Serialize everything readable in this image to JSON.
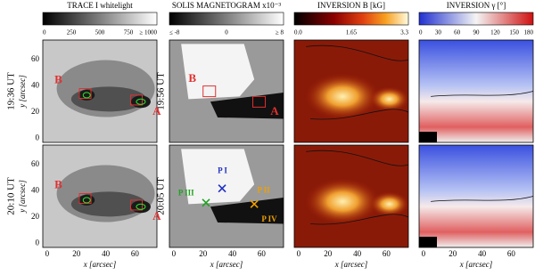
{
  "header": {
    "colorbars": [
      {
        "title": "TRACE I whitelight",
        "ticks": [
          "0",
          "250",
          "500",
          "750",
          "≥ 1000"
        ]
      },
      {
        "title": "SOLIS MAGNETOGRAM x10⁻³",
        "ticks": [
          "≤ -8",
          "0",
          "≥ 8"
        ]
      },
      {
        "title": "INVERSION B [kG]",
        "ticks": [
          "0.0",
          "1.65",
          "3.3"
        ]
      },
      {
        "title": "INVERSION γ [°]",
        "ticks": [
          "0",
          "30",
          "60",
          "90",
          "120",
          "150",
          "180"
        ]
      }
    ]
  },
  "row_labels": {
    "trace": [
      "19:36 UT",
      "20:10 UT"
    ],
    "solis": [
      "19:56 UT",
      "20:05 UT"
    ]
  },
  "axes": {
    "x_label": "x [arcsec]",
    "y_label": "y [arcsec]",
    "x_ticks": [
      "0",
      "20",
      "40",
      "60"
    ],
    "y_ticks": [
      "0",
      "20",
      "40",
      "60"
    ]
  },
  "annotations": {
    "spot_a": "A",
    "spot_b": "B",
    "p1": "P I",
    "p2": "P II",
    "p3": "P III",
    "p4": "P IV"
  }
}
